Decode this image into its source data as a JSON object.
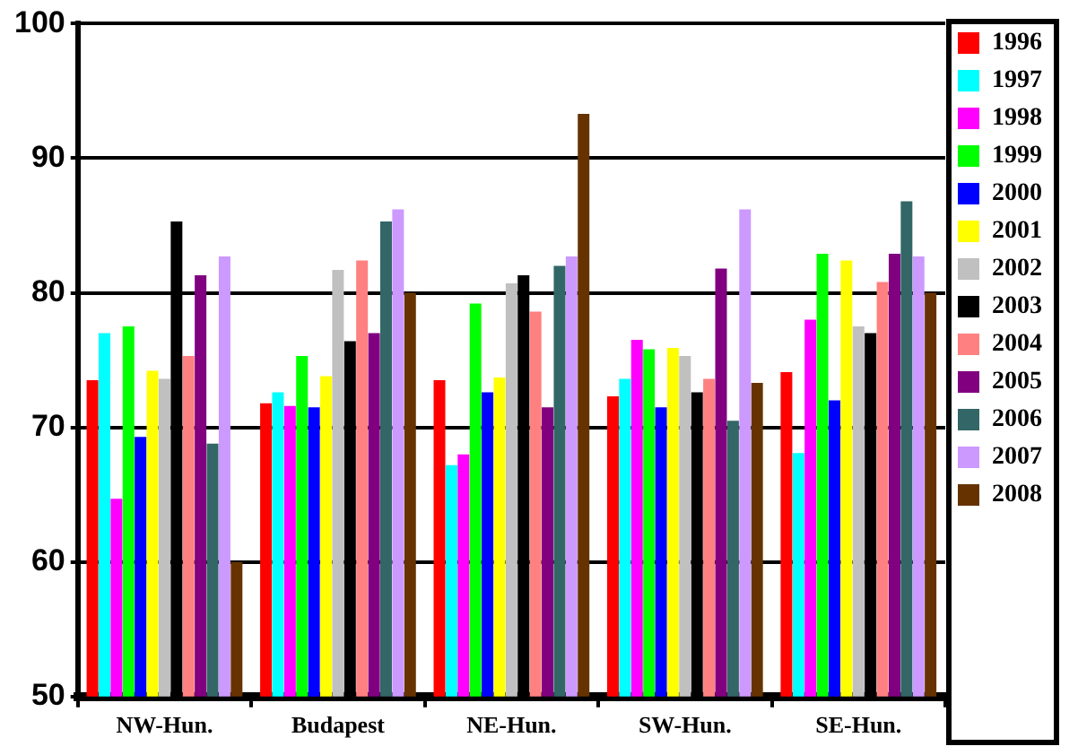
{
  "chart_data": {
    "type": "bar",
    "categories": [
      "NW-Hun.",
      "Budapest",
      "NE-Hun.",
      "SW-Hun.",
      "SE-Hun."
    ],
    "series": [
      {
        "name": "1996",
        "color": "#ff0000",
        "values": [
          73.5,
          71.8,
          73.5,
          72.3,
          74.1
        ]
      },
      {
        "name": "1997",
        "color": "#00ffff",
        "values": [
          77,
          72.6,
          67.2,
          73.6,
          68.1
        ]
      },
      {
        "name": "1998",
        "color": "#ff00ff",
        "values": [
          64.7,
          71.6,
          68,
          76.5,
          78
        ]
      },
      {
        "name": "1999",
        "color": "#00ff00",
        "values": [
          77.5,
          75.3,
          79.2,
          75.8,
          82.9
        ]
      },
      {
        "name": "2000",
        "color": "#0000ff",
        "values": [
          69.3,
          71.5,
          72.6,
          71.5,
          72
        ]
      },
      {
        "name": "2001",
        "color": "#ffff00",
        "values": [
          74.2,
          73.8,
          73.7,
          75.9,
          82.4
        ]
      },
      {
        "name": "2002",
        "color": "#c0c0c0",
        "values": [
          73.6,
          81.7,
          80.7,
          75.3,
          77.5
        ]
      },
      {
        "name": "2003",
        "color": "#000000",
        "values": [
          85.3,
          76.4,
          81.3,
          72.6,
          77
        ]
      },
      {
        "name": "2004",
        "color": "#ff8080",
        "values": [
          75.3,
          82.4,
          78.6,
          73.6,
          80.8
        ]
      },
      {
        "name": "2005",
        "color": "#800080",
        "values": [
          81.3,
          77,
          71.5,
          81.8,
          82.9
        ]
      },
      {
        "name": "2006",
        "color": "#336666",
        "values": [
          68.8,
          85.3,
          82,
          70.5,
          86.8
        ]
      },
      {
        "name": "2007",
        "color": "#cc99ff",
        "values": [
          82.7,
          86.2,
          82.7,
          86.2,
          82.7
        ]
      },
      {
        "name": "2008",
        "color": "#663300",
        "values": [
          60,
          80,
          93.3,
          73.3,
          80
        ]
      }
    ],
    "ylim": [
      50,
      100
    ],
    "yticks": [
      50,
      60,
      70,
      80,
      90,
      100
    ],
    "grid": "y",
    "legend": "right"
  }
}
